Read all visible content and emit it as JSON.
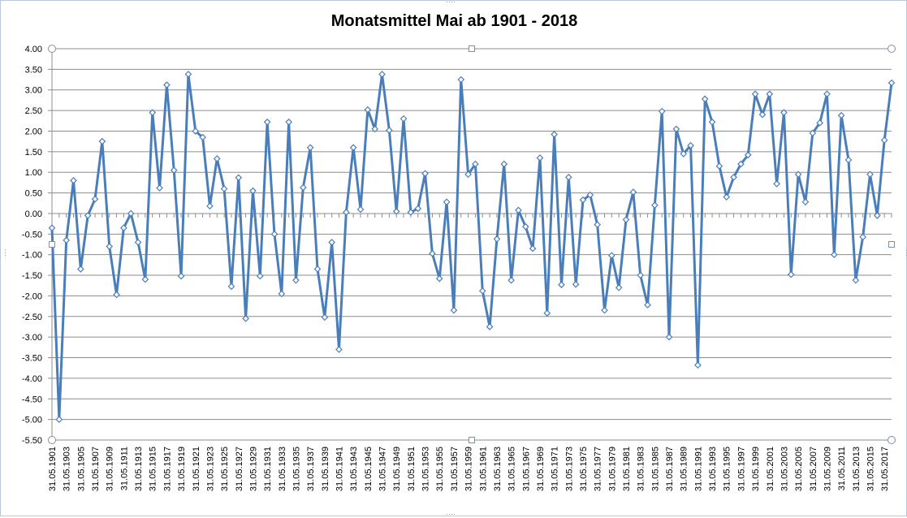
{
  "chart_data": {
    "type": "line",
    "title": "Monatsmittel Mai ab 1901 - 2018",
    "xlabel": "",
    "ylabel": "",
    "ylim": [
      -5.5,
      4.0
    ],
    "yticks": [
      "4.00",
      "3.50",
      "3.00",
      "2.50",
      "2.00",
      "1.50",
      "1.00",
      "0.50",
      "0.00",
      "-0.50",
      "-1.00",
      "-1.50",
      "-2.00",
      "-2.50",
      "-3.00",
      "-3.50",
      "-4.00",
      "-4.50",
      "-5.00",
      "-5.50"
    ],
    "xtick_labels": [
      "31.05.1901",
      "31.05.1903",
      "31.05.1905",
      "31.05.1907",
      "31.05.1909",
      "31.05.1911",
      "31.05.1913",
      "31.05.1915",
      "31.05.1917",
      "31.05.1919",
      "31.05.1921",
      "31.05.1923",
      "31.05.1925",
      "31.05.1927",
      "31.05.1929",
      "31.05.1931",
      "31.05.1933",
      "31.05.1935",
      "31.05.1937",
      "31.05.1939",
      "31.05.1941",
      "31.05.1943",
      "31.05.1945",
      "31.05.1947",
      "31.05.1949",
      "31.05.1951",
      "31.05.1953",
      "31.05.1955",
      "31.05.1957",
      "31.05.1959",
      "31.05.1961",
      "31.05.1963",
      "31.05.1965",
      "31.05.1967",
      "31.05.1969",
      "31.05.1971",
      "31.05.1973",
      "31.05.1975",
      "31.05.1977",
      "31.05.1979",
      "31.05.1981",
      "31.05.1983",
      "31.05.1985",
      "31.05.1987",
      "31.05.1989",
      "31.05.1991",
      "31.05.1993",
      "31.05.1995",
      "31.05.1997",
      "31.05.1999",
      "31.05.2001",
      "31.05.2003",
      "31.05.2005",
      "31.05.2007",
      "31.05.2009",
      "31.05.2011",
      "31.05.2013",
      "31.05.2015",
      "31.05.2017"
    ],
    "x_start_year": 1901,
    "x_end_year": 2018,
    "grid": true,
    "legend": "none",
    "line_color": "#4a7ebb",
    "series": [
      {
        "values": [
          -0.35,
          -5.0,
          -0.65,
          0.8,
          -1.35,
          -0.05,
          0.35,
          1.75,
          -0.8,
          -1.97,
          -0.35,
          0.0,
          -0.7,
          -1.6,
          2.45,
          0.62,
          3.12,
          1.05,
          -1.52,
          3.38,
          2.0,
          1.85,
          0.18,
          1.33,
          0.6,
          -1.77,
          0.87,
          -2.55,
          0.55,
          -1.52,
          2.22,
          -0.5,
          -1.95,
          2.22,
          -1.62,
          0.63,
          1.6,
          -1.35,
          -2.52,
          -0.7,
          -3.3,
          0.03,
          1.6,
          0.1,
          2.52,
          2.05,
          3.38,
          2.02,
          0.05,
          2.3,
          0.03,
          0.12,
          0.97,
          -0.97,
          -1.58,
          0.28,
          -2.35,
          3.25,
          0.95,
          1.2,
          -1.88,
          -2.75,
          -0.62,
          1.2,
          -1.62,
          0.08,
          -0.32,
          -0.85,
          1.35,
          -2.42,
          1.92,
          -1.73,
          0.88,
          -1.72,
          0.33,
          0.45,
          -0.27,
          -2.35,
          -1.02,
          -1.8,
          -0.15,
          0.52,
          -1.5,
          -2.22,
          0.2,
          2.48,
          -3.0,
          2.05,
          1.45,
          1.65,
          -3.68,
          2.78,
          2.22,
          1.15,
          0.4,
          0.88,
          1.2,
          1.42,
          2.9,
          2.4,
          2.9,
          0.72,
          2.45,
          -1.48,
          0.95,
          0.28,
          1.95,
          2.2,
          2.9,
          -1.0,
          2.38,
          1.3,
          -1.62,
          -0.57,
          0.95,
          -0.05,
          1.78,
          3.17
        ]
      }
    ]
  }
}
